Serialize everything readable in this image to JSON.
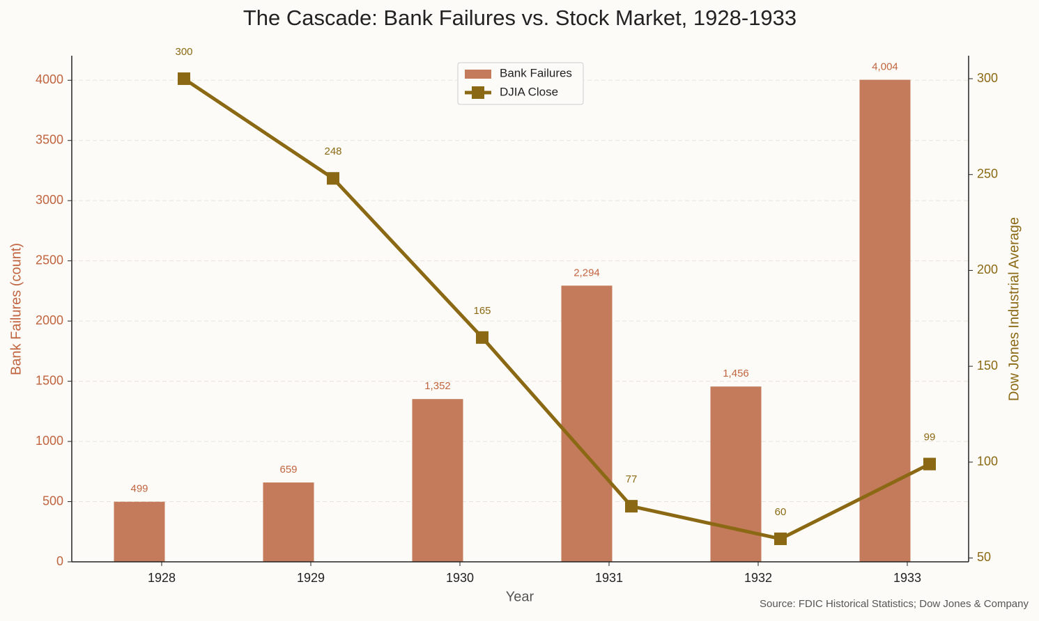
{
  "chart_data": {
    "type": "bar",
    "title": "The Cascade: Bank Failures vs. Stock Market, 1928-1933",
    "x_label": "Year",
    "y_label": "Bank Failures (count)",
    "y2_label": "Dow Jones Industrial Average",
    "source": "Source: FDIC Historical Statistics; Dow Jones & Company",
    "categories": [
      "1928",
      "1929",
      "1930",
      "1931",
      "1932",
      "1933"
    ],
    "series": [
      {
        "name": "Bank Failures",
        "type": "bar",
        "color": "#c47b5c",
        "values": [
          499,
          659,
          1352,
          2294,
          1456,
          4004
        ],
        "value_labels": [
          "499",
          "659",
          "1,352",
          "2,294",
          "1,456",
          "4,004"
        ]
      },
      {
        "name": "DJIA Close",
        "type": "line",
        "axis": "y2",
        "color": "#8b6914",
        "values": [
          300,
          248,
          165,
          77,
          60,
          99
        ]
      }
    ],
    "ylim": [
      0,
      4204
    ],
    "yticks": [
      0,
      500,
      1000,
      1500,
      2000,
      2500,
      3000,
      3500,
      4000
    ],
    "y2lim": [
      48,
      312
    ],
    "y2ticks": [
      50,
      100,
      150,
      200,
      250,
      300
    ],
    "grid": true,
    "legend": "upper center"
  }
}
